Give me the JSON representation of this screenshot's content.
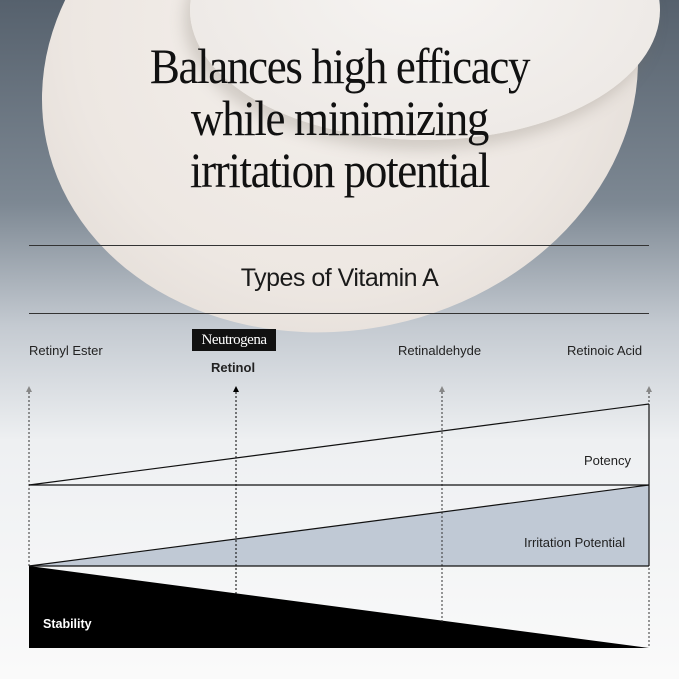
{
  "headline": [
    "Balances high efficacy",
    "while minimizing",
    "irritation potential"
  ],
  "subtitle": "Types of Vitamin A",
  "types": [
    {
      "name": "Retinyl Ester"
    },
    {
      "name": "Retinol",
      "brand": "Neutrogena",
      "highlighted": true
    },
    {
      "name": "Retinaldehyde"
    },
    {
      "name": "Retinoic Acid"
    }
  ],
  "bands": {
    "potency": "Potency",
    "irritation": "Irritation Potential",
    "stability": "Stability"
  },
  "colors": {
    "irritation_fill": "#c0c9d5",
    "stability_fill": "#000000",
    "text": "#111111"
  }
}
